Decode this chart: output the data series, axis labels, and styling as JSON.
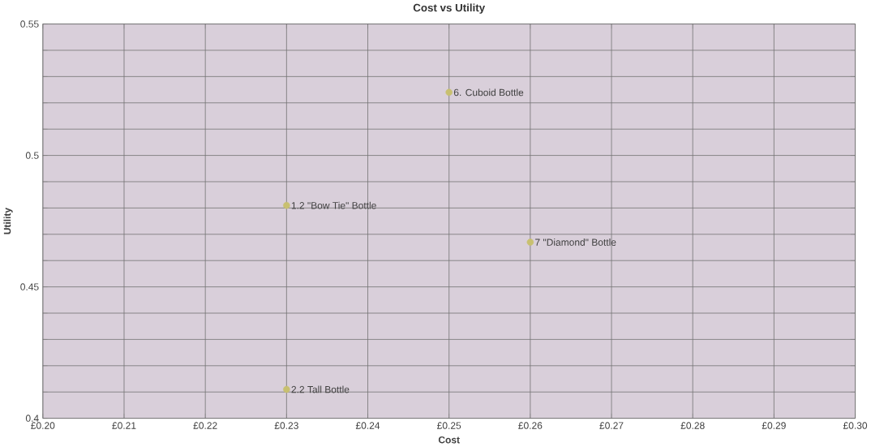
{
  "chart_data": {
    "type": "scatter",
    "title": "Cost vs Utility",
    "xlabel": "Cost",
    "ylabel": "Utility",
    "x": [
      0.23,
      0.23,
      0.25,
      0.26
    ],
    "values": [
      0.481,
      0.411,
      0.524,
      0.467
    ],
    "color": "#c8c070",
    "grid": true,
    "xlim": [
      0.2,
      0.3
    ],
    "ylim": [
      0.4,
      0.55
    ],
    "xticks": [
      {
        "value": 0.2,
        "label": "£0.20"
      },
      {
        "value": 0.21,
        "label": "£0.21"
      },
      {
        "value": 0.22,
        "label": "£0.22"
      },
      {
        "value": 0.23,
        "label": "£0.23"
      },
      {
        "value": 0.24,
        "label": "£0.24"
      },
      {
        "value": 0.25,
        "label": "£0.25"
      },
      {
        "value": 0.26,
        "label": "£0.26"
      },
      {
        "value": 0.27,
        "label": "£0.27"
      },
      {
        "value": 0.28,
        "label": "£0.28"
      },
      {
        "value": 0.29,
        "label": "£0.29"
      },
      {
        "value": 0.3,
        "label": "£0.30"
      }
    ],
    "yticks": [
      0.4,
      {
        "value": 0.41,
        "label": null
      },
      {
        "value": 0.42,
        "label": null
      },
      {
        "value": 0.43,
        "label": null
      },
      {
        "value": 0.44,
        "label": null
      },
      0.45,
      {
        "value": 0.46,
        "label": null
      },
      {
        "value": 0.47,
        "label": null
      },
      {
        "value": 0.48,
        "label": null
      },
      {
        "value": 0.49,
        "label": null
      },
      0.5,
      {
        "value": 0.51,
        "label": null
      },
      {
        "value": 0.52,
        "label": null
      },
      {
        "value": 0.53,
        "label": null
      },
      {
        "value": 0.54,
        "label": null
      },
      0.55
    ],
    "annotations": [
      {
        "text": "1.2 \"Bow Tie\" Bottle",
        "x": 0.23,
        "y": 0.481
      },
      {
        "text": "2.2 Tall Bottle",
        "x": 0.23,
        "y": 0.411
      },
      {
        "text": "6. Cuboid Bottle",
        "x": 0.25,
        "y": 0.524
      },
      {
        "text": "7 \"Diamond\" Bottle",
        "x": 0.26,
        "y": 0.467
      }
    ]
  }
}
